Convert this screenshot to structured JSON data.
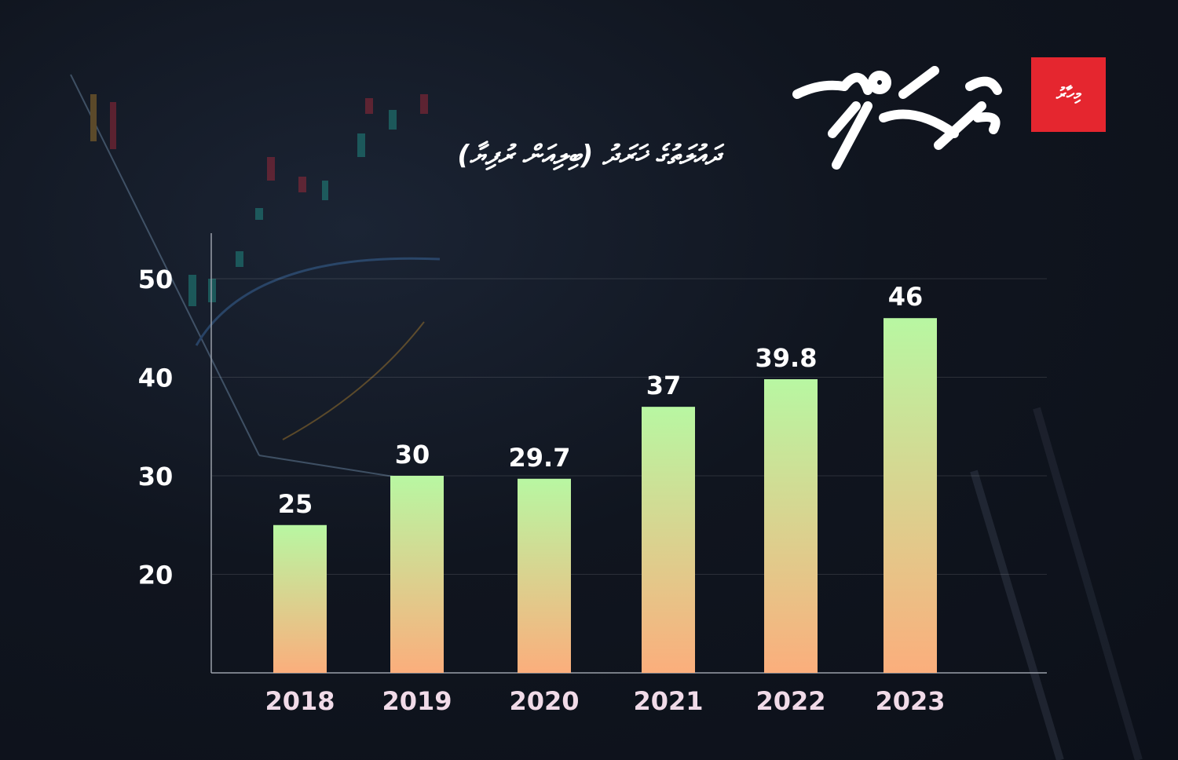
{
  "header": {
    "title": "ދައުލަތުގެ ޚަރަދު (ބިލިއަން ރުފިޔާ)",
    "logo_text": "މިހާރު"
  },
  "colors": {
    "bar_top": "#b8f7a2",
    "bar_bottom": "#fbae7c",
    "logo_red": "#e5262f",
    "background": "#10151f"
  },
  "chart_data": {
    "type": "bar",
    "title": "ދައުލަތުގެ ޚަރަދު (ބިލިއަން ރުފިޔާ)",
    "categories": [
      "2018",
      "2019",
      "2020",
      "2021",
      "2022",
      "2023"
    ],
    "values": [
      25,
      30,
      29.7,
      37,
      39.8,
      46
    ],
    "value_labels": [
      "25",
      "30",
      "29.7",
      "37",
      "39.8",
      "46"
    ],
    "yticks": [
      "20",
      "30",
      "40",
      "50"
    ],
    "ylim": [
      10,
      50
    ],
    "grid": true,
    "xlabel": "",
    "ylabel": ""
  }
}
